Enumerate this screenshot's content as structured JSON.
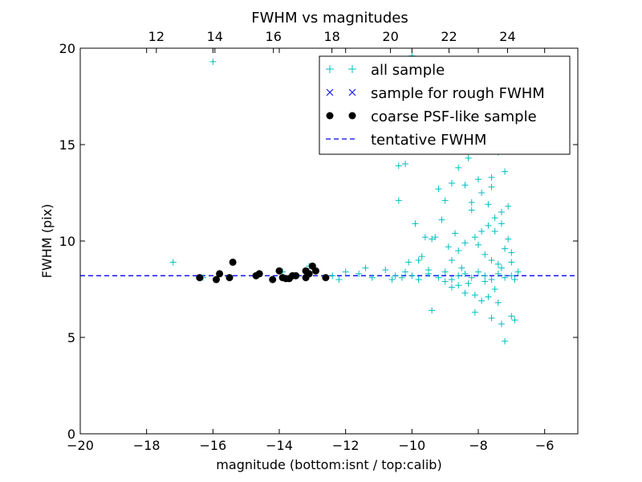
{
  "chart_data": {
    "type": "scatter",
    "title": "FWHM vs magnitudes",
    "xlabel": "magnitude (bottom:isnt / top:calib)",
    "ylabel": "FWHM (pix)",
    "xlim": [
      -20,
      -5
    ],
    "ylim": [
      0,
      20
    ],
    "x_ticks": [
      -20,
      -18,
      -16,
      -14,
      -12,
      -10,
      -8,
      -6
    ],
    "x_tick_labels": [
      "−20",
      "−18",
      "−16",
      "−14",
      "−12",
      "−10",
      "−8",
      "−6"
    ],
    "y_ticks": [
      0,
      5,
      10,
      15,
      20
    ],
    "y_tick_labels": [
      "0",
      "5",
      "10",
      "15",
      "20"
    ],
    "top_axis": {
      "xlim": [
        9.4,
        26.4
      ],
      "ticks": [
        12,
        14,
        16,
        18,
        20,
        22,
        24
      ],
      "tick_labels": [
        "12",
        "14",
        "16",
        "18",
        "20",
        "22",
        "24"
      ]
    },
    "grid": false,
    "legend_position": "top-right",
    "legend": [
      {
        "label": "all sample",
        "marker": "+",
        "color": "#00bfbf"
      },
      {
        "label": "sample for rough FWHM",
        "marker": "x",
        "color": "#0000ff"
      },
      {
        "label": "coarse PSF-like sample",
        "marker": "o",
        "color": "#000000"
      },
      {
        "label": "tentative FWHM",
        "marker": "dashed-line",
        "color": "#0000ff"
      }
    ],
    "tentative_fwhm": 8.2,
    "series": [
      {
        "name": "all sample",
        "marker": "+",
        "color": "#00bfbf",
        "points": [
          [
            -16.0,
            19.3
          ],
          [
            -17.2,
            8.9
          ],
          [
            -16.3,
            8.1
          ],
          [
            -15.9,
            8.0
          ],
          [
            -15.4,
            8.9
          ],
          [
            -14.6,
            8.3
          ],
          [
            -13.9,
            8.4
          ],
          [
            -13.1,
            8.7
          ],
          [
            -12.4,
            8.2
          ],
          [
            -12.2,
            8.0
          ],
          [
            -12.0,
            8.4
          ],
          [
            -11.6,
            8.3
          ],
          [
            -11.4,
            8.6
          ],
          [
            -11.2,
            8.1
          ],
          [
            -10.8,
            8.5
          ],
          [
            -10.6,
            8.0
          ],
          [
            -10.5,
            8.2
          ],
          [
            -10.3,
            8.1
          ],
          [
            -10.2,
            8.4
          ],
          [
            -10.0,
            8.2
          ],
          [
            -9.8,
            8.0
          ],
          [
            -9.5,
            8.3
          ],
          [
            -9.2,
            8.1
          ],
          [
            -9.0,
            8.4
          ],
          [
            -8.8,
            8.0
          ],
          [
            -8.6,
            8.2
          ],
          [
            -8.4,
            8.3
          ],
          [
            -8.2,
            8.1
          ],
          [
            -8.0,
            8.4
          ],
          [
            -7.8,
            8.2
          ],
          [
            -7.6,
            8.0
          ],
          [
            -7.4,
            8.3
          ],
          [
            -7.2,
            8.1
          ],
          [
            -7.0,
            8.2
          ],
          [
            -6.9,
            8.0
          ],
          [
            -10.0,
            19.6
          ],
          [
            -9.6,
            14.8
          ],
          [
            -10.2,
            14.0
          ],
          [
            -10.4,
            13.9
          ],
          [
            -9.2,
            12.7
          ],
          [
            -9.0,
            12.1
          ],
          [
            -10.4,
            12.1
          ],
          [
            -9.6,
            10.2
          ],
          [
            -8.6,
            13.8
          ],
          [
            -8.3,
            14.3
          ],
          [
            -8.0,
            13.2
          ],
          [
            -7.8,
            15.1
          ],
          [
            -7.6,
            12.8
          ],
          [
            -7.4,
            14.6
          ],
          [
            -7.2,
            13.6
          ],
          [
            -7.3,
            11.5
          ],
          [
            -7.5,
            11.2
          ],
          [
            -7.7,
            10.8
          ],
          [
            -7.9,
            10.5
          ],
          [
            -8.1,
            10.2
          ],
          [
            -8.4,
            9.9
          ],
          [
            -8.6,
            9.5
          ],
          [
            -8.8,
            9.0
          ],
          [
            -9.1,
            11.1
          ],
          [
            -9.4,
            10.1
          ],
          [
            -9.8,
            9.0
          ],
          [
            -8.2,
            11.6
          ],
          [
            -8.0,
            9.8
          ],
          [
            -7.8,
            9.3
          ],
          [
            -7.6,
            9.0
          ],
          [
            -7.4,
            8.8
          ],
          [
            -7.2,
            9.6
          ],
          [
            -7.1,
            10.1
          ],
          [
            -7.0,
            9.4
          ],
          [
            -7.3,
            8.6
          ],
          [
            -7.5,
            7.5
          ],
          [
            -7.7,
            7.1
          ],
          [
            -7.9,
            6.9
          ],
          [
            -8.1,
            7.2
          ],
          [
            -8.4,
            7.3
          ],
          [
            -8.6,
            7.7
          ],
          [
            -8.8,
            7.6
          ],
          [
            -9.0,
            7.9
          ],
          [
            -9.4,
            6.4
          ],
          [
            -8.1,
            6.3
          ],
          [
            -7.6,
            6.0
          ],
          [
            -7.3,
            5.7
          ],
          [
            -7.0,
            6.1
          ],
          [
            -6.9,
            5.9
          ],
          [
            -7.2,
            4.8
          ],
          [
            -7.4,
            6.8
          ],
          [
            -7.8,
            7.9
          ],
          [
            -8.3,
            7.8
          ],
          [
            -8.5,
            8.6
          ],
          [
            -9.7,
            9.2
          ],
          [
            -9.5,
            8.5
          ],
          [
            -8.9,
            9.7
          ],
          [
            -8.7,
            10.4
          ],
          [
            -8.2,
            12.0
          ],
          [
            -7.9,
            12.5
          ],
          [
            -7.7,
            11.9
          ],
          [
            -7.5,
            10.5
          ],
          [
            -7.3,
            10.9
          ],
          [
            -7.1,
            11.8
          ],
          [
            -7.6,
            13.3
          ],
          [
            -8.4,
            12.9
          ],
          [
            -8.8,
            13.0
          ],
          [
            -9.3,
            10.2
          ],
          [
            -9.9,
            10.9
          ],
          [
            -10.1,
            8.9
          ],
          [
            -7.0,
            8.9
          ],
          [
            -6.8,
            8.4
          ]
        ]
      },
      {
        "name": "coarse PSF-like sample",
        "marker": "o",
        "color": "#000000",
        "points": [
          [
            -16.4,
            8.1
          ],
          [
            -15.9,
            8.0
          ],
          [
            -15.8,
            8.3
          ],
          [
            -15.5,
            8.1
          ],
          [
            -15.4,
            8.9
          ],
          [
            -14.7,
            8.2
          ],
          [
            -14.6,
            8.3
          ],
          [
            -14.2,
            8.0
          ],
          [
            -14.0,
            8.45
          ],
          [
            -13.8,
            8.05
          ],
          [
            -13.7,
            8.05
          ],
          [
            -13.6,
            8.2
          ],
          [
            -13.5,
            8.2
          ],
          [
            -13.2,
            8.45
          ],
          [
            -13.1,
            8.3
          ],
          [
            -13.0,
            8.7
          ],
          [
            -12.9,
            8.45
          ],
          [
            -12.6,
            8.1
          ],
          [
            -13.2,
            8.1
          ],
          [
            -13.9,
            8.1
          ]
        ]
      }
    ]
  }
}
